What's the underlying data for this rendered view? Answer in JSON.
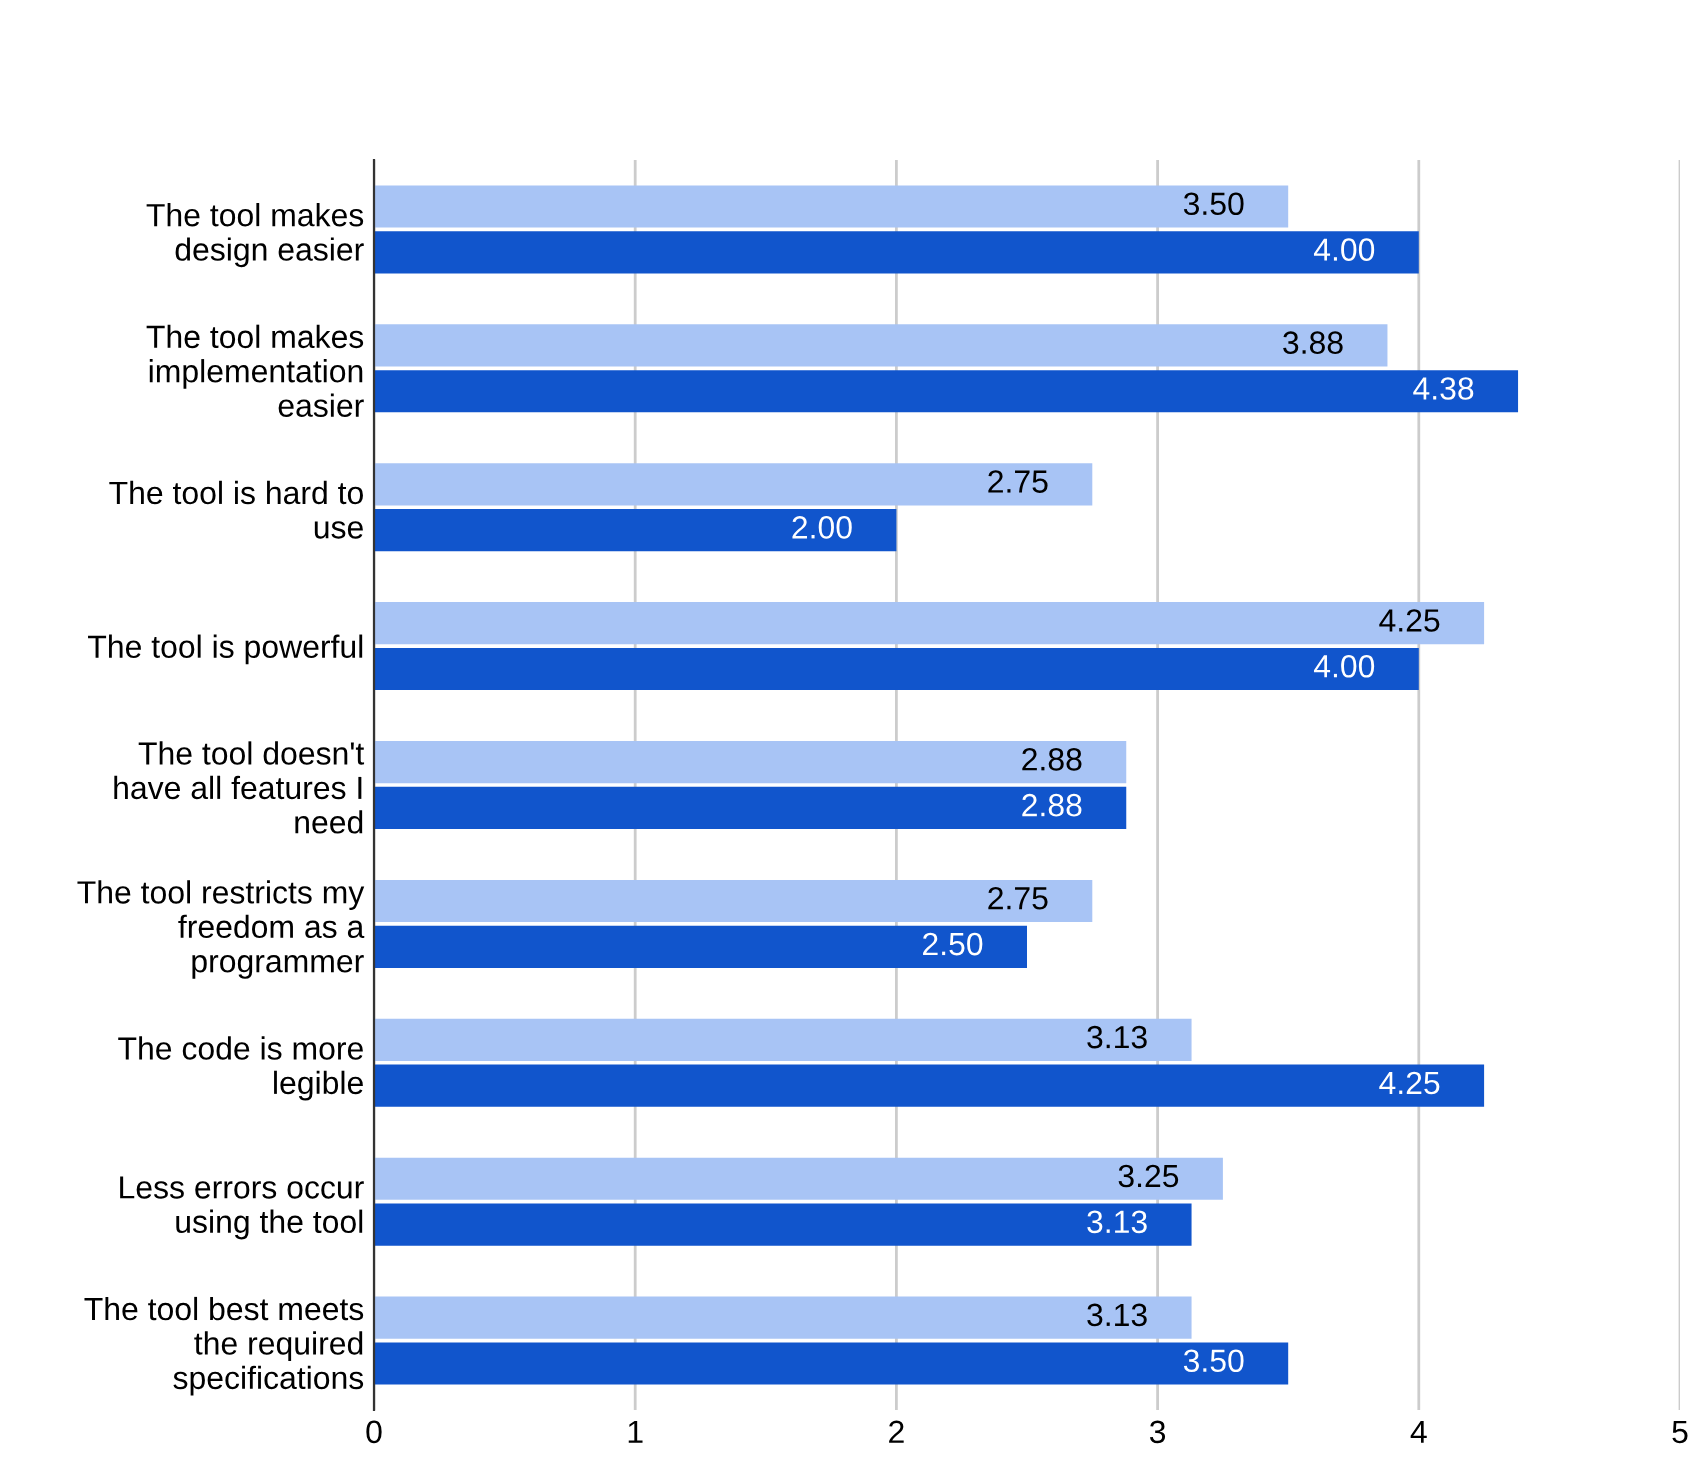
{
  "chart_data": {
    "type": "bar",
    "orientation": "horizontal",
    "categories": [
      "The tool makes\ndesign easier",
      "The tool makes\nimplementation\neasier",
      "The tool is hard to\nuse",
      "The tool is powerful",
      "The tool doesn't\nhave all features I\nneed",
      "The tool restricts my\nfreedom as a\nprogrammer",
      "The code is more\nlegible",
      "Less errors occur\nusing the tool",
      "The tool best meets\nthe required\nspecifications"
    ],
    "series": [
      {
        "color": "#a8c4f5",
        "values": [
          3.5,
          3.88,
          2.75,
          4.25,
          2.88,
          2.75,
          3.13,
          3.25,
          3.13
        ],
        "value_labels": [
          "3.50",
          "3.88",
          "2.75",
          "4.25",
          "2.88",
          "2.75",
          "3.13",
          "3.25",
          "3.13"
        ]
      },
      {
        "color": "#1155cc",
        "values": [
          4.0,
          4.38,
          2.0,
          4.0,
          2.88,
          2.5,
          4.25,
          3.13,
          3.5
        ],
        "value_labels": [
          "4.00",
          "4.38",
          "2.00",
          "4.00",
          "2.88",
          "2.50",
          "4.25",
          "3.13",
          "3.50"
        ]
      }
    ],
    "xlim": [
      0,
      5
    ],
    "xticks": [
      0,
      1,
      2,
      3,
      4,
      5
    ],
    "grid": "x"
  }
}
